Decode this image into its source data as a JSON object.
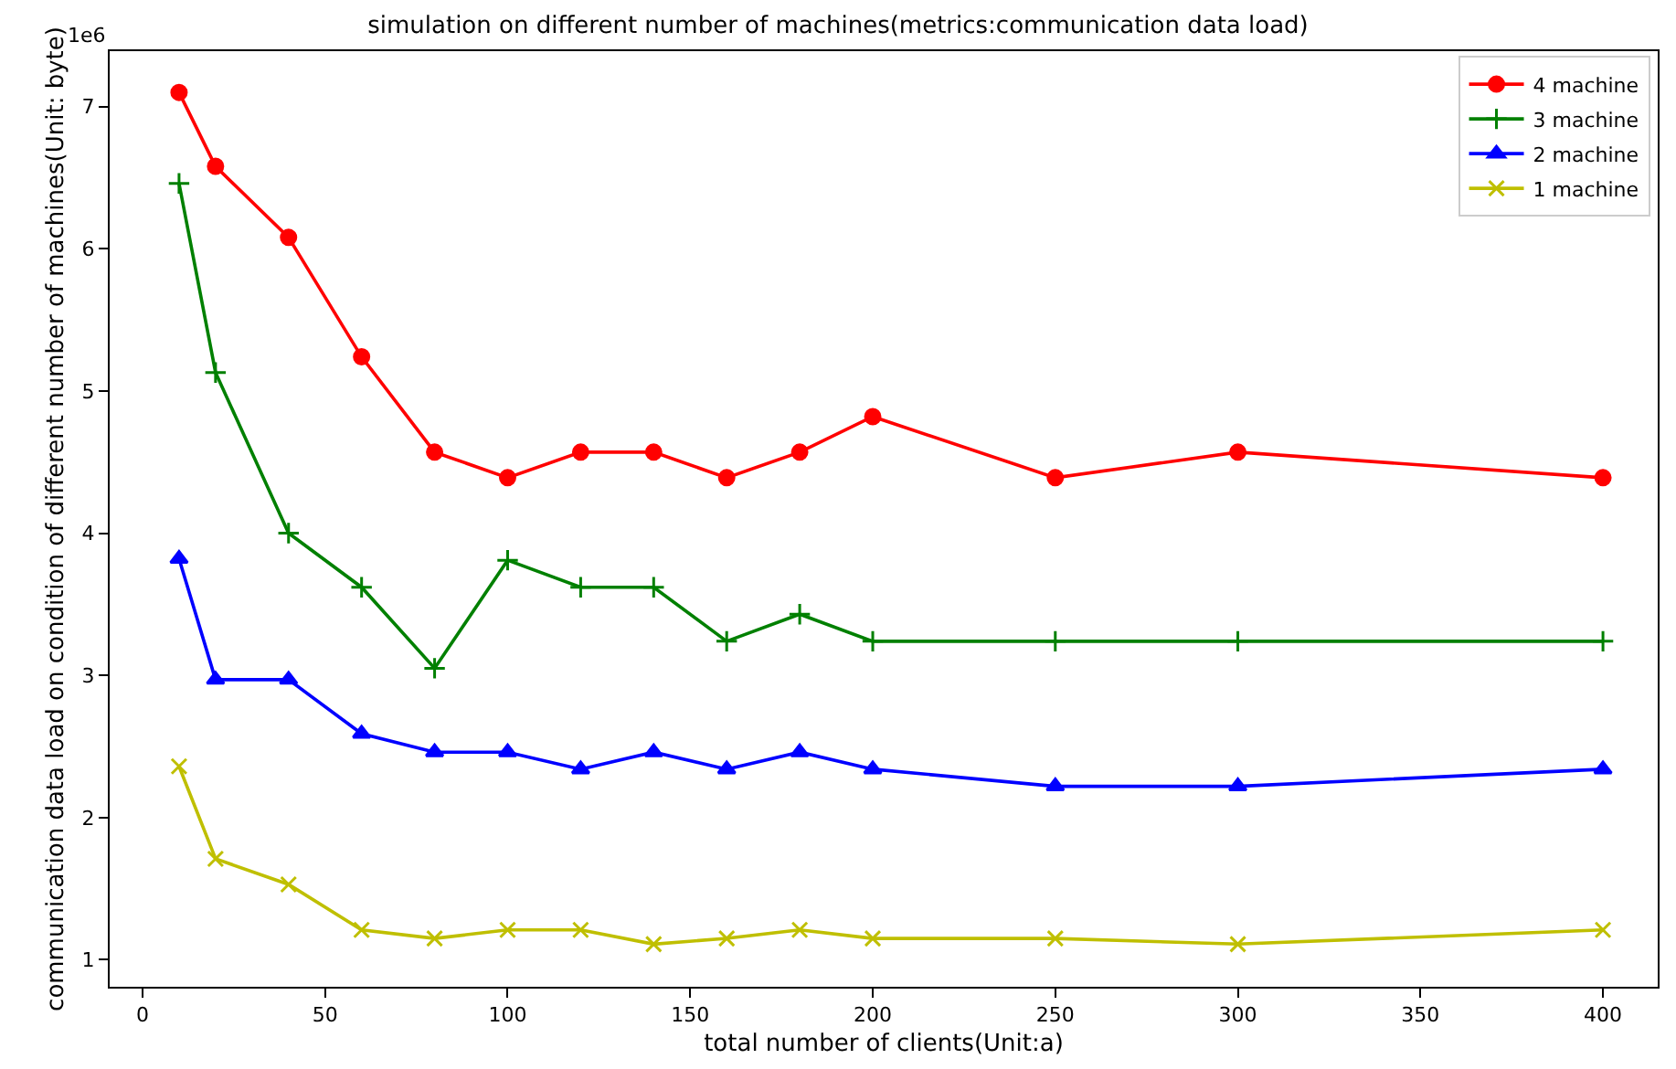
{
  "chart_data": {
    "type": "line",
    "title": "simulation on different number of machines(metrics:communication data load)",
    "xlabel": "total number of clients(Unit:a)",
    "ylabel": "communication data load on condition of different number of machines(Unit: byte)",
    "x": [
      10,
      20,
      40,
      60,
      80,
      100,
      120,
      140,
      160,
      180,
      200,
      250,
      300,
      400
    ],
    "series": [
      {
        "name": "4 machine",
        "color": "#ff0000",
        "marker": "circle",
        "values": [
          7.1,
          6.58,
          6.08,
          5.24,
          4.57,
          4.39,
          4.57,
          4.57,
          4.39,
          4.57,
          4.82,
          4.39,
          4.57,
          4.39
        ]
      },
      {
        "name": "3 machine",
        "color": "#008000",
        "marker": "cross",
        "values": [
          6.46,
          5.13,
          4.0,
          3.62,
          3.05,
          3.81,
          3.62,
          3.62,
          3.24,
          3.43,
          3.24,
          3.24,
          3.24,
          3.24
        ]
      },
      {
        "name": "2 machine",
        "color": "#0000ff",
        "marker": "triangle",
        "values": [
          3.82,
          2.97,
          2.97,
          2.59,
          2.46,
          2.46,
          2.34,
          2.46,
          2.34,
          2.46,
          2.34,
          2.22,
          2.22,
          2.34
        ]
      },
      {
        "name": "1 machine",
        "color": "#bfbf00",
        "marker": "x",
        "values": [
          2.36,
          1.71,
          1.53,
          1.21,
          1.15,
          1.21,
          1.21,
          1.11,
          1.15,
          1.21,
          1.15,
          1.15,
          1.11,
          1.21
        ]
      }
    ],
    "xlim": [
      -9,
      415
    ],
    "xticks": [
      0,
      50,
      100,
      150,
      200,
      250,
      300,
      350,
      400
    ],
    "ylim": [
      0.81,
      7.39
    ],
    "yticks": [
      1,
      2,
      3,
      4,
      5,
      6,
      7
    ],
    "annotations": [
      "1e6"
    ],
    "legend": "top right",
    "grid": false
  }
}
